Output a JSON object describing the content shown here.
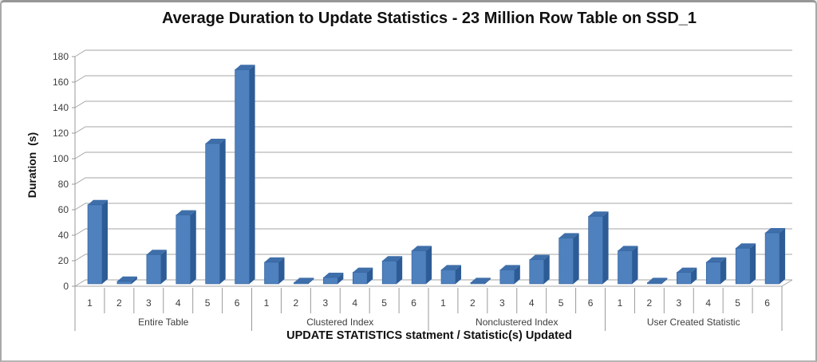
{
  "chart_data": {
    "type": "bar",
    "style": "3d-clustered-column",
    "title": "Average Duration to Update Statistics - 23 Million Row Table on SSD_1",
    "xlabel": "UPDATE STATISTICS statment / Statistic(s) Updated",
    "ylabel": "Duration  (s)",
    "ylim": [
      0,
      180
    ],
    "ytick_step": 20,
    "ytick_labels": [
      "0",
      "20",
      "40",
      "60",
      "80",
      "100",
      "120",
      "140",
      "160",
      "180"
    ],
    "grid": true,
    "legend": false,
    "categories": [
      "1",
      "2",
      "3",
      "4",
      "5",
      "6"
    ],
    "groups": [
      {
        "label": "Entire Table",
        "values": [
          62,
          2,
          23,
          54,
          110,
          168
        ]
      },
      {
        "label": "Clustered Index",
        "values": [
          17,
          1,
          5,
          9,
          18,
          26
        ]
      },
      {
        "label": "Nonclustered Index",
        "values": [
          11,
          1,
          11,
          19,
          36,
          53
        ]
      },
      {
        "label": "User Created Statistic",
        "values": [
          26,
          1,
          9,
          17,
          28,
          40
        ]
      }
    ],
    "colors": {
      "bar_front": "#4e81bd",
      "bar_top": "#3f6faa",
      "bar_side": "#2d5b95",
      "bar_edge": "#2e5d99",
      "gridline": "#a6a6a6",
      "axis_line": "#9a9a9a",
      "tick_text": "#3d3d3d",
      "title_text": "#111111"
    }
  }
}
